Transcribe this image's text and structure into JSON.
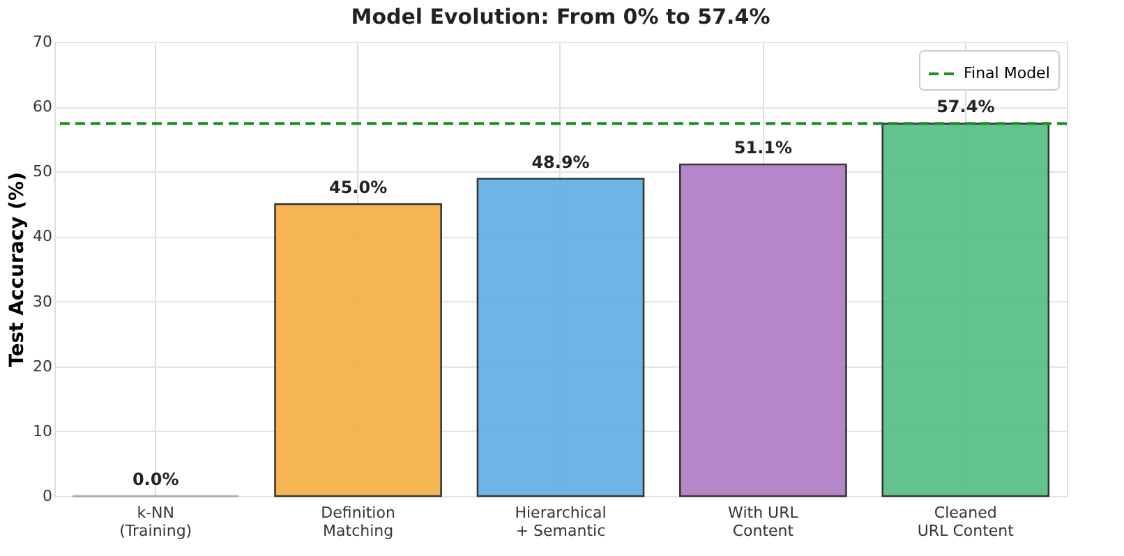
{
  "chart_data": {
    "type": "bar",
    "title": "Model Evolution: From 0% to 57.4%",
    "ylabel": "Test Accuracy (%)",
    "categories": [
      "k-NN\n(Training)",
      "Definition\nMatching",
      "Hierarchical\n+ Semantic",
      "With URL\nContent",
      "Cleaned\nURL Content"
    ],
    "values": [
      0.0,
      45.0,
      48.9,
      51.1,
      57.4
    ],
    "colors": [
      "#95a5a6",
      "#f4ae40",
      "#5dade2",
      "#af7ac5",
      "#52be80"
    ],
    "value_labels": [
      "0.0%",
      "45.0%",
      "48.9%",
      "51.1%",
      "57.4%"
    ],
    "ylim": [
      0,
      70
    ],
    "yticks": [
      0,
      10,
      20,
      30,
      40,
      50,
      60,
      70
    ],
    "ref_lines": [
      {
        "axis": "y",
        "value": 57.4,
        "label": "Final Model",
        "color": "#228b22",
        "line_style": "dashed"
      }
    ],
    "grid": true,
    "legend": "top right"
  }
}
